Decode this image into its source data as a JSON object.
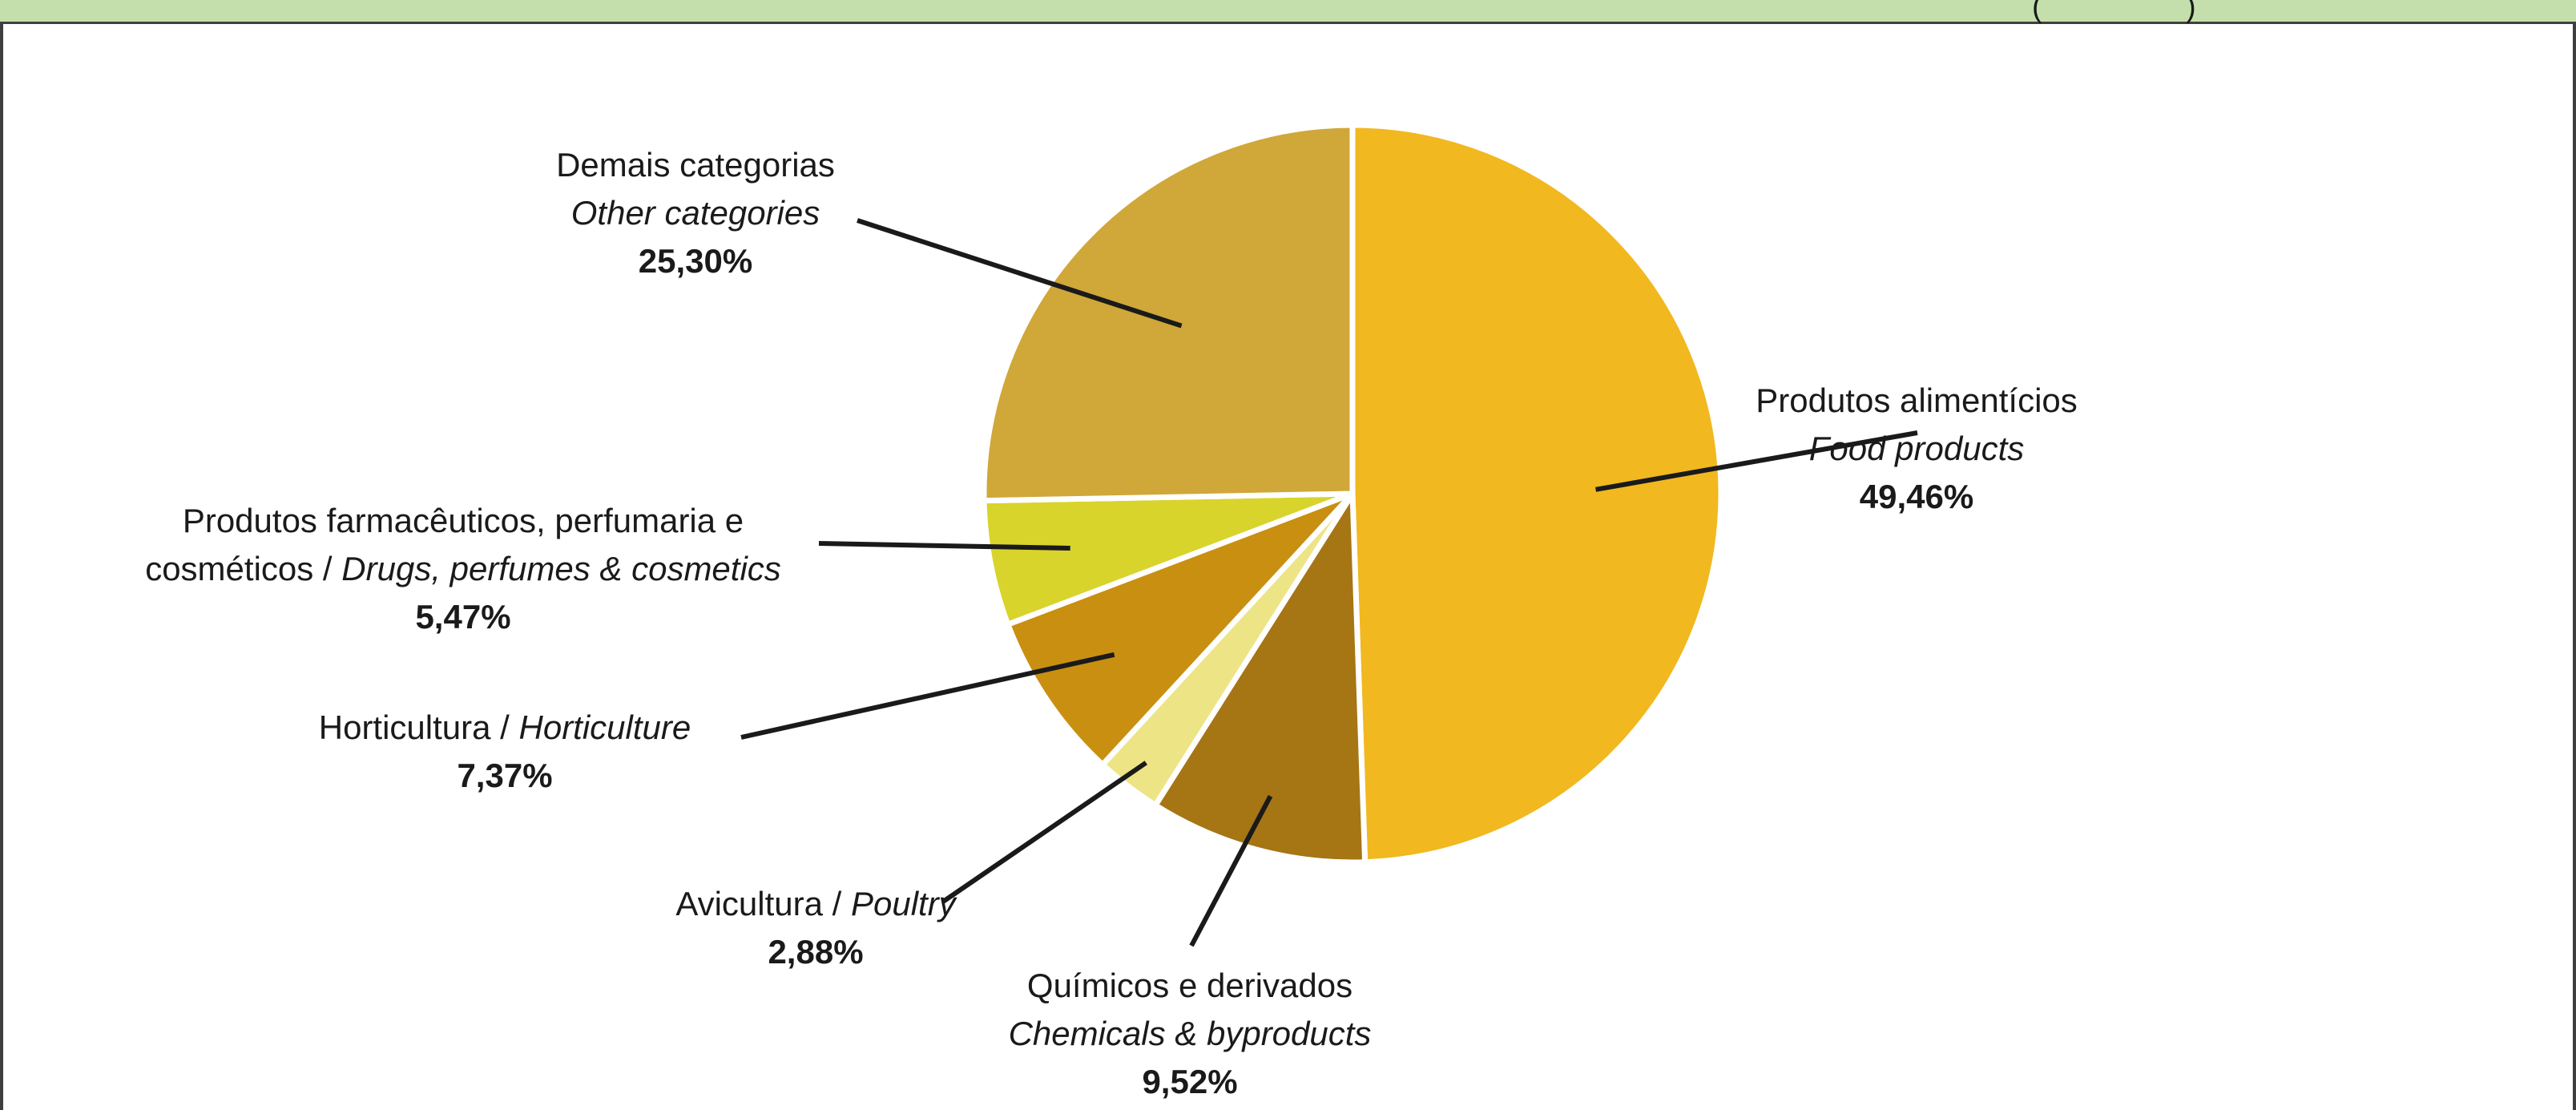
{
  "chart_data": {
    "type": "pie",
    "title": "",
    "slices": [
      {
        "pt": "Produtos alimentícios",
        "en": "Food products",
        "value": 49.46,
        "label": "49,46%",
        "color": "#f1b81f"
      },
      {
        "pt": "Químicos e derivados",
        "en": "Chemicals &  byproducts",
        "value": 9.52,
        "label": "9,52%",
        "color": "#a67514"
      },
      {
        "pt": "Avicultura / ",
        "en": "Poultry",
        "value": 2.88,
        "label": "2,88%",
        "color": "#ede486"
      },
      {
        "pt": "Horticultura / ",
        "en": "Horticulture",
        "value": 7.37,
        "label": "7,37%",
        "color": "#c98f10"
      },
      {
        "pt": "Produtos farmacêuticos, perfumaria e",
        "pt2": "cosméticos / ",
        "en": "Drugs, perfumes & cosmetics",
        "value": 5.47,
        "label": "5,47%",
        "color": "#d8d42b"
      },
      {
        "pt": "Demais categorias",
        "en": "Other categories",
        "value": 25.3,
        "label": "25,30%",
        "color": "#d0a739"
      }
    ]
  },
  "header": {
    "background": "#c4dfac",
    "glyph_text": "( )"
  }
}
